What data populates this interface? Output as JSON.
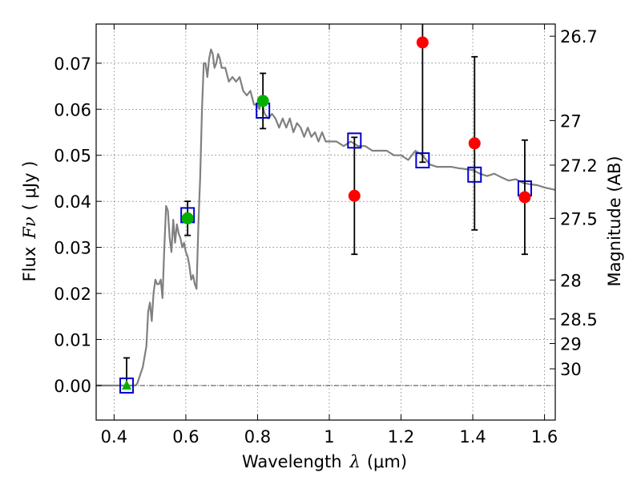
{
  "chart_data": {
    "type": "scatter",
    "title": "",
    "xlabel_prefix": "Wavelength",
    "xlabel_symbol": "λ",
    "xlabel_unit": "(μm)",
    "ylabel_prefix": "Flux",
    "ylabel_symbol": "Fν",
    "ylabel_unit": "( μJy )",
    "y2label": "Magnitude (AB)",
    "xlim": [
      0.35,
      1.63
    ],
    "ylim": [
      -0.0075,
      0.0785
    ],
    "grid": true,
    "x_ticks": [
      0.4,
      0.6,
      0.8,
      1.0,
      1.2,
      1.4,
      1.6
    ],
    "x_tick_labels": [
      "0.4",
      "0.6",
      "0.8",
      "1",
      "1.2",
      "1.4",
      "1.6"
    ],
    "y_ticks": [
      0.0,
      0.01,
      0.02,
      0.03,
      0.04,
      0.05,
      0.06,
      0.07
    ],
    "y_tick_labels": [
      "0.00",
      "0.01",
      "0.02",
      "0.03",
      "0.04",
      "0.05",
      "0.06",
      "0.07"
    ],
    "mag_ticks": [
      26.7,
      27.0,
      27.2,
      27.5,
      28.0,
      28.5,
      29.0,
      30.0
    ],
    "mag_tick_labels": [
      "26.7",
      "27",
      "27.2",
      "27.5",
      "28",
      "28.5",
      "29",
      "30"
    ],
    "mag_zero_point": 23.9,
    "colors": {
      "model": "#808080",
      "model_photometry": "#0000cc",
      "detections": "#00b000",
      "upper_limit": "#00b000",
      "low_significance": "#ff0000",
      "errorbar": "#000000",
      "grid": "#b0b0b0",
      "zero_line": "#000000"
    },
    "series": [
      {
        "name": "Model SED",
        "kind": "line",
        "x": [
          0.35,
          0.46,
          0.465,
          0.48,
          0.49,
          0.495,
          0.5,
          0.505,
          0.51,
          0.515,
          0.52,
          0.525,
          0.53,
          0.535,
          0.54,
          0.545,
          0.55,
          0.555,
          0.56,
          0.565,
          0.57,
          0.575,
          0.58,
          0.585,
          0.59,
          0.595,
          0.6,
          0.605,
          0.61,
          0.615,
          0.62,
          0.625,
          0.63,
          0.635,
          0.64,
          0.645,
          0.65,
          0.655,
          0.66,
          0.665,
          0.67,
          0.675,
          0.68,
          0.685,
          0.69,
          0.695,
          0.7,
          0.71,
          0.72,
          0.73,
          0.74,
          0.75,
          0.76,
          0.77,
          0.78,
          0.79,
          0.8,
          0.805,
          0.81,
          0.82,
          0.83,
          0.84,
          0.85,
          0.86,
          0.87,
          0.88,
          0.89,
          0.9,
          0.91,
          0.92,
          0.93,
          0.94,
          0.95,
          0.96,
          0.97,
          0.98,
          0.99,
          1.0,
          1.02,
          1.04,
          1.06,
          1.08,
          1.1,
          1.12,
          1.14,
          1.16,
          1.18,
          1.2,
          1.22,
          1.24,
          1.26,
          1.28,
          1.3,
          1.32,
          1.34,
          1.36,
          1.38,
          1.4,
          1.42,
          1.44,
          1.46,
          1.48,
          1.5,
          1.52,
          1.54,
          1.56,
          1.58,
          1.6,
          1.63
        ],
        "y": [
          0.0,
          0.0,
          0.0005,
          0.004,
          0.0085,
          0.016,
          0.018,
          0.014,
          0.02,
          0.023,
          0.022,
          0.022,
          0.023,
          0.019,
          0.03,
          0.039,
          0.038,
          0.032,
          0.029,
          0.036,
          0.031,
          0.035,
          0.033,
          0.032,
          0.03,
          0.031,
          0.029,
          0.028,
          0.026,
          0.023,
          0.024,
          0.022,
          0.021,
          0.035,
          0.045,
          0.06,
          0.07,
          0.07,
          0.067,
          0.071,
          0.073,
          0.072,
          0.069,
          0.07,
          0.072,
          0.071,
          0.069,
          0.069,
          0.066,
          0.067,
          0.066,
          0.067,
          0.064,
          0.063,
          0.064,
          0.061,
          0.061,
          0.06,
          0.062,
          0.059,
          0.058,
          0.059,
          0.058,
          0.056,
          0.058,
          0.056,
          0.058,
          0.055,
          0.057,
          0.056,
          0.054,
          0.056,
          0.054,
          0.055,
          0.053,
          0.055,
          0.053,
          0.053,
          0.053,
          0.052,
          0.053,
          0.052,
          0.052,
          0.051,
          0.051,
          0.051,
          0.05,
          0.05,
          0.049,
          0.051,
          0.05,
          0.048,
          0.0475,
          0.0475,
          0.0475,
          0.0472,
          0.047,
          0.0468,
          0.046,
          0.0455,
          0.046,
          0.0452,
          0.0445,
          0.0448,
          0.044,
          0.0437,
          0.0435,
          0.043,
          0.0425
        ]
      },
      {
        "name": "Model photometry",
        "kind": "square",
        "x": [
          0.435,
          0.605,
          0.815,
          1.07,
          1.26,
          1.405,
          1.545
        ],
        "y": [
          0.0,
          0.037,
          0.0597,
          0.0532,
          0.0489,
          0.0458,
          0.0428
        ]
      },
      {
        "name": "Detections",
        "kind": "circle",
        "x": [
          0.605,
          0.815
        ],
        "y": [
          0.0363,
          0.0618
        ],
        "yerr": [
          0.0037,
          0.006
        ]
      },
      {
        "name": "Upper limit",
        "kind": "triangle",
        "x": [
          0.435
        ],
        "y": [
          0.0
        ],
        "yerr": [
          0.006
        ]
      },
      {
        "name": "Low-significance",
        "kind": "circle",
        "x": [
          1.07,
          1.26,
          1.405,
          1.545
        ],
        "y": [
          0.0412,
          0.0745,
          0.0526,
          0.0409
        ],
        "yerr": [
          0.0127,
          0.026,
          0.0188,
          0.0124
        ]
      }
    ]
  }
}
